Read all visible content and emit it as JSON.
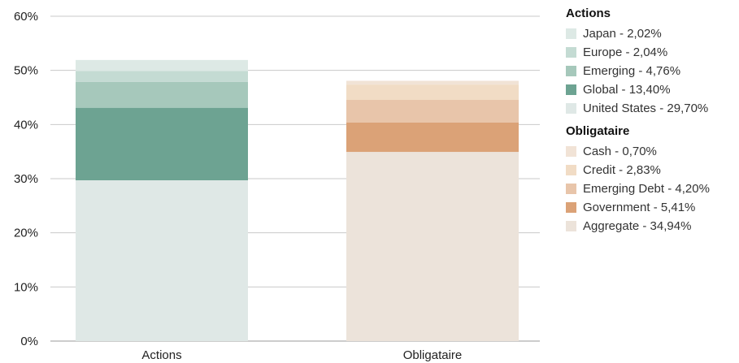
{
  "chart_data": {
    "type": "bar",
    "stacked": true,
    "categories": [
      "Actions",
      "Obligataire"
    ],
    "ylim": [
      0,
      60
    ],
    "yticks": [
      "0%",
      "10%",
      "20%",
      "30%",
      "40%",
      "50%",
      "60%"
    ],
    "grid": true,
    "legend_position": "right",
    "groups": [
      {
        "title": "Actions",
        "category": "Actions",
        "series": [
          {
            "name": "Japan - 2,02%",
            "value": 2.02,
            "color": "#dde9e5"
          },
          {
            "name": "Europe - 2,04%",
            "value": 2.04,
            "color": "#c4dbd3"
          },
          {
            "name": "Emerging - 4,76%",
            "value": 4.76,
            "color": "#a6c8bb"
          },
          {
            "name": "Global - 13,40%",
            "value": 13.4,
            "color": "#6da392"
          },
          {
            "name": "United States - 29,70%",
            "value": 29.7,
            "color": "#dfe8e6"
          }
        ]
      },
      {
        "title": "Obligataire",
        "category": "Obligataire",
        "series": [
          {
            "name": "Cash - 0,70%",
            "value": 0.7,
            "color": "#f1e3d6"
          },
          {
            "name": "Credit - 2,83%",
            "value": 2.83,
            "color": "#f1dcc5"
          },
          {
            "name": "Emerging Debt - 4,20%",
            "value": 4.2,
            "color": "#e8c5aa"
          },
          {
            "name": "Government - 5,41%",
            "value": 5.41,
            "color": "#dba277"
          },
          {
            "name": "Aggregate - 34,94%",
            "value": 34.94,
            "color": "#ece3da"
          }
        ]
      }
    ]
  }
}
